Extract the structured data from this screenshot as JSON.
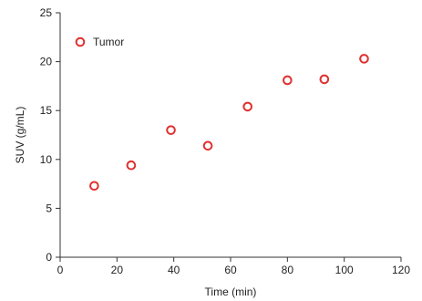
{
  "chart_data": {
    "type": "scatter",
    "xlabel": "Time (min)",
    "ylabel": "SUV (g/mL)",
    "xlim": [
      0,
      120
    ],
    "ylim": [
      0,
      25
    ],
    "xticks": [
      "0",
      "20",
      "40",
      "60",
      "80",
      "100",
      "120"
    ],
    "yticks": [
      "0",
      "5",
      "10",
      "15",
      "20",
      "25"
    ],
    "grid": false,
    "legend_position": "top-left",
    "series": [
      {
        "name": "Tumor",
        "color": "#e03030",
        "marker": "open-circle",
        "points": [
          {
            "x": 12,
            "y": 7.3
          },
          {
            "x": 25,
            "y": 9.4
          },
          {
            "x": 39,
            "y": 13.0
          },
          {
            "x": 52,
            "y": 11.4
          },
          {
            "x": 66,
            "y": 15.4
          },
          {
            "x": 80,
            "y": 18.1
          },
          {
            "x": 93,
            "y": 18.2
          },
          {
            "x": 107,
            "y": 20.3
          }
        ]
      }
    ]
  }
}
